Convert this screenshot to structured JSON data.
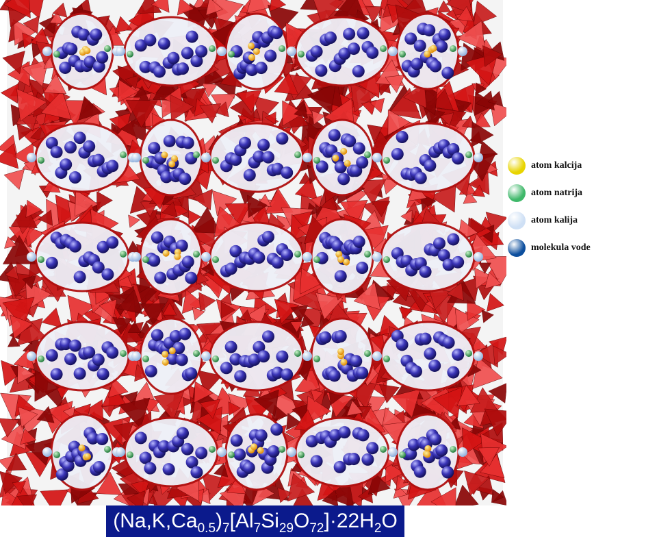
{
  "legend": {
    "items": [
      {
        "label": "atom kalcija",
        "color": "#e8d400"
      },
      {
        "label": "atom natrija",
        "color": "#3fb86a"
      },
      {
        "label": "atom kalija",
        "color": "#cfe0f5"
      },
      {
        "label": "molekula vode",
        "color": "#0d4f9e"
      }
    ]
  },
  "formula": {
    "parts": [
      "(Na,K,Ca",
      "0.5",
      ")",
      "7",
      "[Al",
      "7",
      "Si",
      "29",
      "O",
      "72",
      "]·22H",
      "2",
      "O"
    ]
  }
}
